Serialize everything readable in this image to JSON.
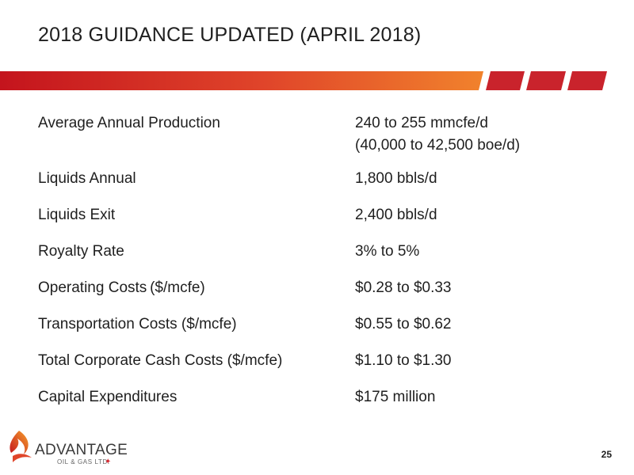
{
  "slide": {
    "title": "2018 GUIDANCE UPDATED (APRIL 2018)",
    "page_number": "25"
  },
  "colors": {
    "banner_start": "#c4141d",
    "banner_end": "#f1822c",
    "banner_blocks": "#c9232c"
  },
  "guidance": [
    {
      "label": "Average Annual Production",
      "value": "240 to 255 mmcfe/d",
      "value2": "(40,000 to 42,500 boe/d)"
    },
    {
      "label": "Liquids Annual",
      "value": "1,800 bbls/d"
    },
    {
      "label": "Liquids Exit",
      "value": "2,400 bbls/d"
    },
    {
      "label": "Royalty Rate",
      "value": "3% to 5%"
    },
    {
      "label": "Operating Costs ($/mcfe)",
      "value": "$0.28 to $0.33"
    },
    {
      "label": "Transportation Costs ($/mcfe)",
      "value": "$0.55 to $0.62"
    },
    {
      "label": "Total Corporate Cash Costs ($/mcfe)",
      "value": "$1.10 to $1.30"
    },
    {
      "label": "Capital Expenditures",
      "value": "$175 million"
    }
  ],
  "logo": {
    "name": "ADVANTAGE",
    "sub": "OIL & GAS LTD.",
    "icon": "flame-logo-icon"
  }
}
